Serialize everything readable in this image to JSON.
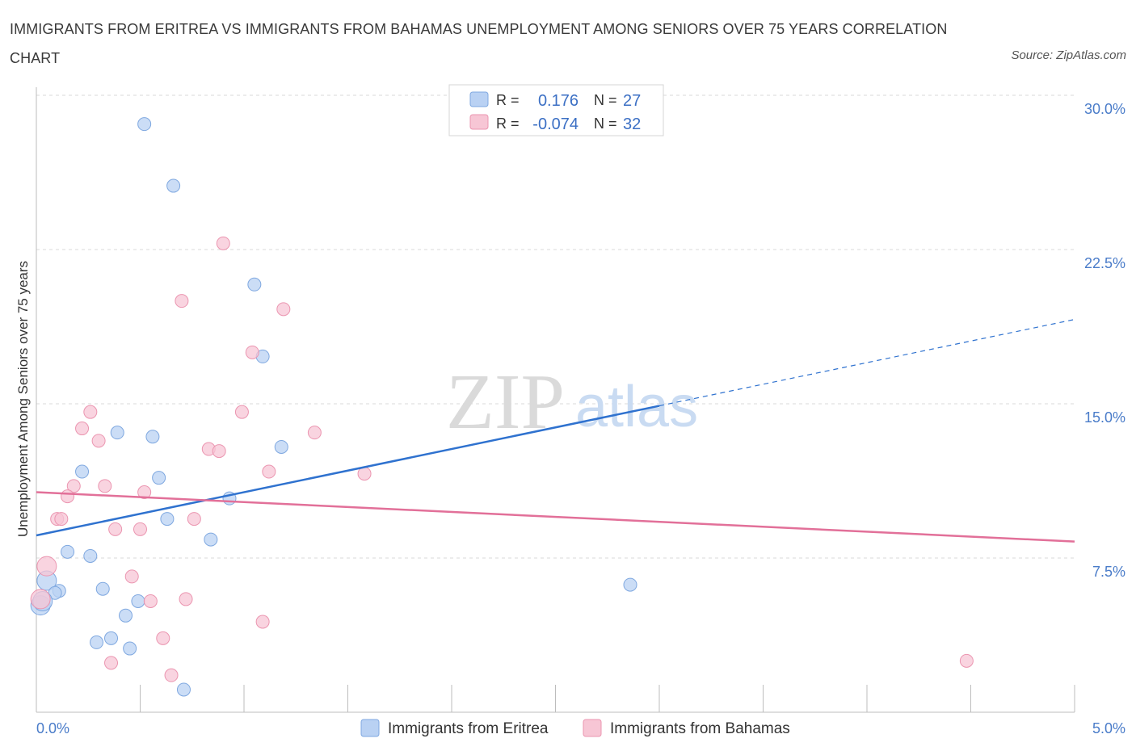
{
  "title": "IMMIGRANTS FROM ERITREA VS IMMIGRANTS FROM BAHAMAS UNEMPLOYMENT AMONG SENIORS OVER 75 YEARS CORRELATION CHART",
  "source": "Source: ZipAtlas.com",
  "watermark": {
    "zip": "ZIP",
    "atlas": "atlas"
  },
  "colors": {
    "blue_fill": "#b9d1f3",
    "blue_stroke": "#7fa8e0",
    "blue_line": "#2f72cf",
    "pink_fill": "#f7c6d5",
    "pink_stroke": "#eb95b0",
    "pink_line": "#e27099",
    "grid": "#d9d9d9",
    "axis_text": "#4a7cc9"
  },
  "chart_data": {
    "type": "scatter",
    "ylabel": "Unemployment Among Seniors over 75 years",
    "xlim": [
      0,
      5
    ],
    "ylim": [
      0,
      30
    ],
    "x_tick_labels": [
      {
        "value": 0,
        "label": "0.0%"
      },
      {
        "value": 5,
        "label": "5.0%"
      }
    ],
    "y_tick_labels": [
      {
        "value": 7.5,
        "label": "7.5%"
      },
      {
        "value": 15,
        "label": "15.0%"
      },
      {
        "value": 22.5,
        "label": "22.5%"
      },
      {
        "value": 30,
        "label": "30.0%"
      }
    ],
    "legend": {
      "rows": [
        {
          "r_label": "R =",
          "r_value": "0.176",
          "n_label": "N =",
          "n_value": "27"
        },
        {
          "r_label": "R =",
          "r_value": "-0.074",
          "n_label": "N =",
          "n_value": "32"
        }
      ]
    },
    "series": [
      {
        "name": "Immigrants from Eritrea",
        "color": "blue",
        "points": [
          [
            0.52,
            28.6
          ],
          [
            0.66,
            25.6
          ],
          [
            1.05,
            20.8
          ],
          [
            1.09,
            17.3
          ],
          [
            0.39,
            13.6
          ],
          [
            0.56,
            13.4
          ],
          [
            1.18,
            12.9
          ],
          [
            0.22,
            11.7
          ],
          [
            0.59,
            11.4
          ],
          [
            0.93,
            10.4
          ],
          [
            0.63,
            9.4
          ],
          [
            0.84,
            8.4
          ],
          [
            0.15,
            7.8
          ],
          [
            0.26,
            7.6
          ],
          [
            0.05,
            6.4
          ],
          [
            0.11,
            5.9
          ],
          [
            0.09,
            5.8
          ],
          [
            0.32,
            6.0
          ],
          [
            0.49,
            5.4
          ],
          [
            0.43,
            4.7
          ],
          [
            0.02,
            5.2
          ],
          [
            0.03,
            5.4
          ],
          [
            0.29,
            3.4
          ],
          [
            0.36,
            3.6
          ],
          [
            0.45,
            3.1
          ],
          [
            0.71,
            1.1
          ],
          [
            2.86,
            6.2
          ]
        ],
        "trend": {
          "x": [
            0,
            3.0
          ],
          "y": [
            8.6,
            14.9
          ]
        },
        "trend_dashed": {
          "x": [
            3.0,
            5.0
          ],
          "y": [
            14.9,
            19.1
          ]
        }
      },
      {
        "name": "Immigrants from Bahamas",
        "color": "pink",
        "points": [
          [
            0.9,
            22.8
          ],
          [
            0.7,
            20.0
          ],
          [
            1.19,
            19.6
          ],
          [
            1.04,
            17.5
          ],
          [
            0.26,
            14.6
          ],
          [
            0.99,
            14.6
          ],
          [
            0.22,
            13.8
          ],
          [
            0.3,
            13.2
          ],
          [
            1.34,
            13.6
          ],
          [
            0.83,
            12.8
          ],
          [
            0.88,
            12.7
          ],
          [
            1.12,
            11.7
          ],
          [
            1.58,
            11.6
          ],
          [
            0.18,
            11.0
          ],
          [
            0.33,
            11.0
          ],
          [
            0.52,
            10.7
          ],
          [
            0.15,
            10.5
          ],
          [
            0.1,
            9.4
          ],
          [
            0.12,
            9.4
          ],
          [
            0.38,
            8.9
          ],
          [
            0.5,
            8.9
          ],
          [
            0.76,
            9.4
          ],
          [
            0.05,
            7.1
          ],
          [
            0.46,
            6.6
          ],
          [
            0.55,
            5.4
          ],
          [
            0.72,
            5.5
          ],
          [
            1.09,
            4.4
          ],
          [
            0.61,
            3.6
          ],
          [
            0.36,
            2.4
          ],
          [
            0.65,
            1.8
          ],
          [
            0.02,
            5.5
          ],
          [
            4.48,
            2.5
          ]
        ],
        "trend": {
          "x": [
            0,
            5.0
          ],
          "y": [
            10.7,
            8.3
          ]
        }
      }
    ]
  },
  "bottom_legend": [
    {
      "label": "Immigrants from Eritrea",
      "color": "blue"
    },
    {
      "label": "Immigrants from Bahamas",
      "color": "pink"
    }
  ]
}
